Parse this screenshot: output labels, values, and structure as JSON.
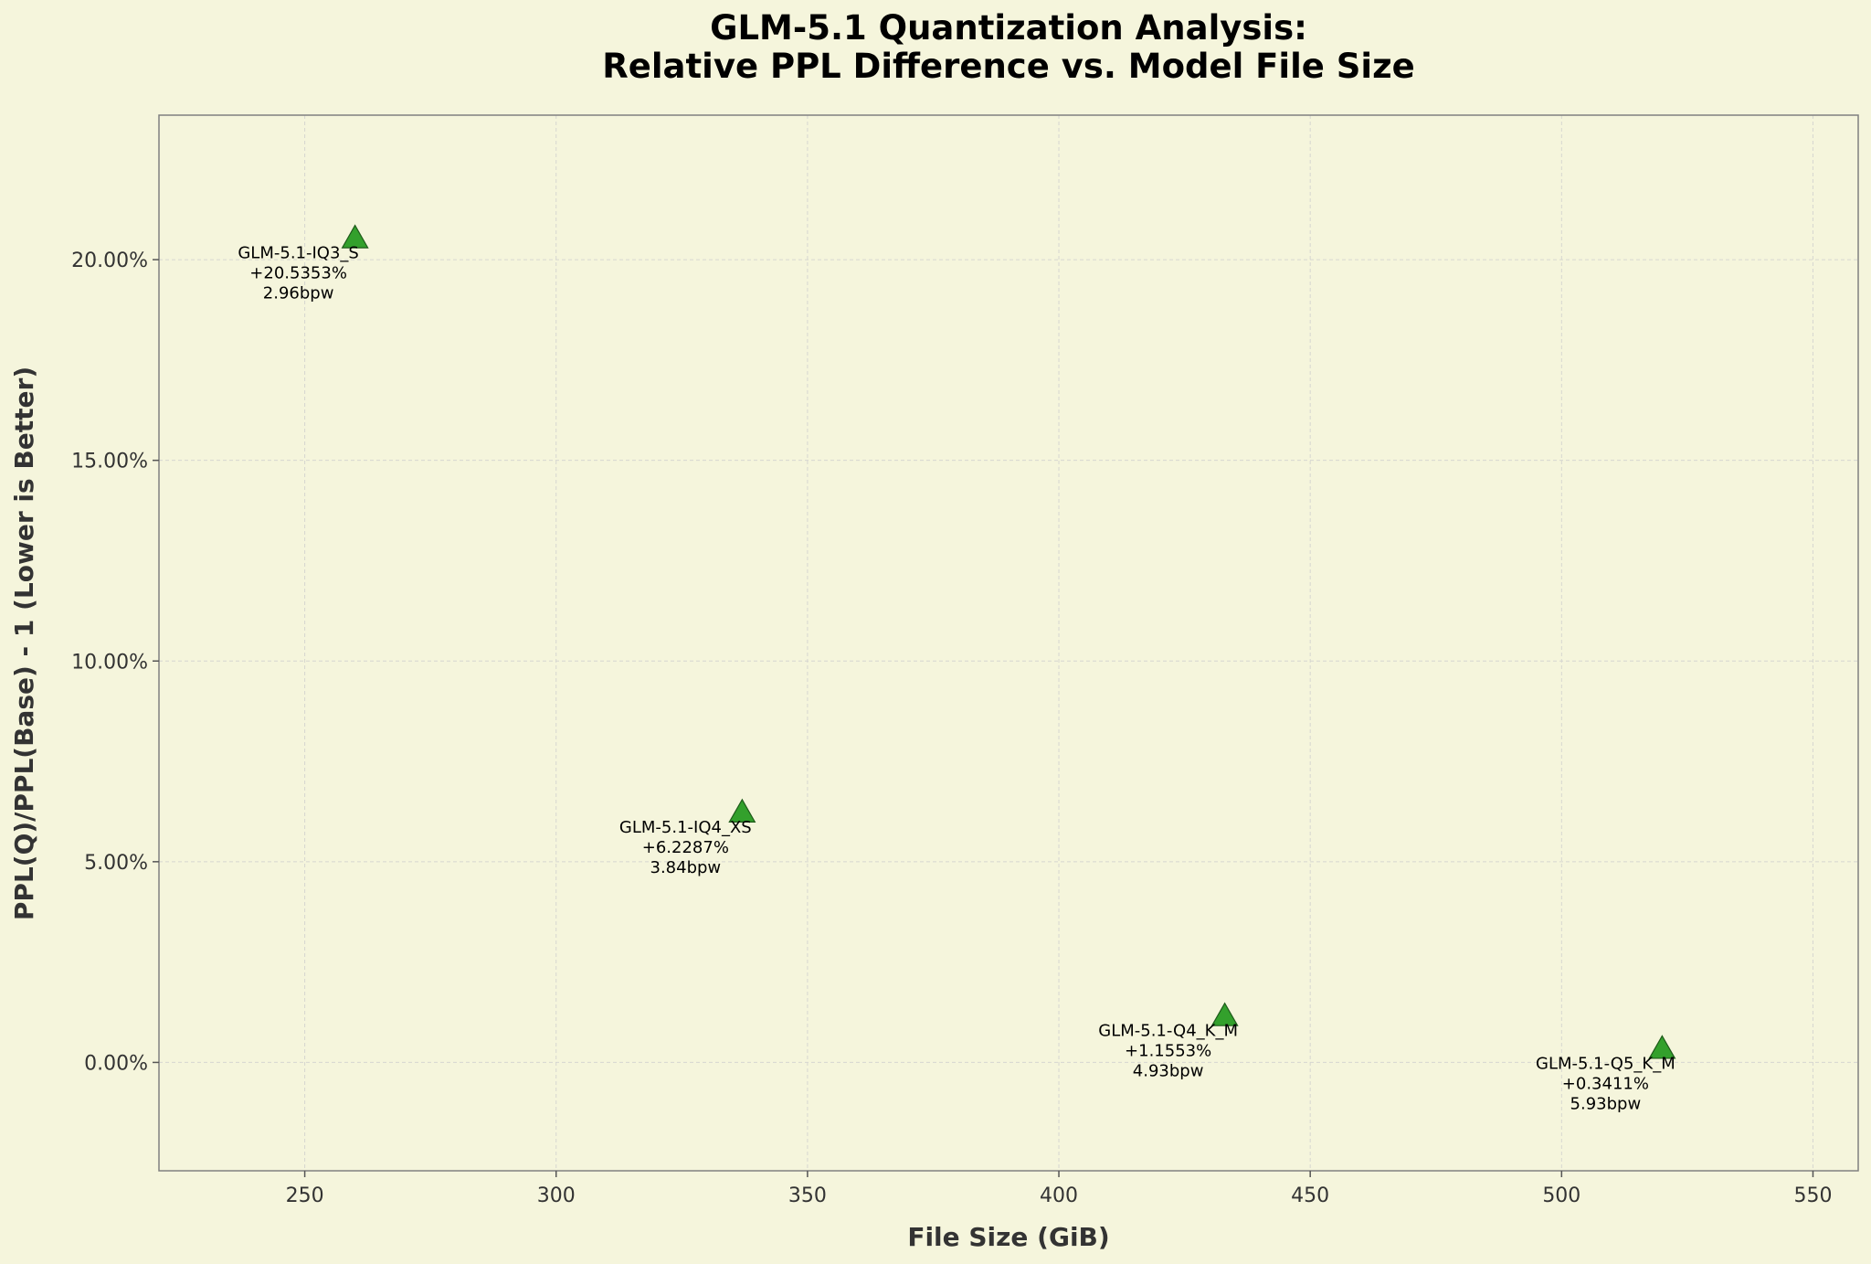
{
  "chart_data": {
    "type": "scatter",
    "title_line1": "GLM-5.1 Quantization Analysis:",
    "title_line2": "Relative PPL Difference vs. Model File Size",
    "xlabel": "File Size (GiB)",
    "ylabel": "PPL(Q)/PPL(Base) - 1 (Lower is Better)",
    "xlim": [
      221,
      559
    ],
    "ylim": [
      -2.7,
      23.6
    ],
    "xticks": [
      250,
      300,
      350,
      400,
      450,
      500,
      550
    ],
    "xtick_labels": [
      "250",
      "300",
      "350",
      "400",
      "450",
      "500",
      "550"
    ],
    "yticks": [
      0,
      5,
      10,
      15,
      20
    ],
    "ytick_labels": [
      "0.00%",
      "5.00%",
      "10.00%",
      "15.00%",
      "20.00%"
    ],
    "grid": true,
    "marker": "triangle",
    "marker_color": "#33a02c",
    "background": "#f5f5dc",
    "points": [
      {
        "name": "GLM-5.1-IQ3_S",
        "x": 260,
        "y": 20.5353,
        "label": "+20.5353%",
        "bpw": "2.96bpw"
      },
      {
        "name": "GLM-5.1-IQ4_XS",
        "x": 337,
        "y": 6.2287,
        "label": "+6.2287%",
        "bpw": "3.84bpw"
      },
      {
        "name": "GLM-5.1-Q4_K_M",
        "x": 433,
        "y": 1.1553,
        "label": "+1.1553%",
        "bpw": "4.93bpw"
      },
      {
        "name": "GLM-5.1-Q5_K_M",
        "x": 520,
        "y": 0.3411,
        "label": "+0.3411%",
        "bpw": "5.93bpw"
      }
    ]
  }
}
